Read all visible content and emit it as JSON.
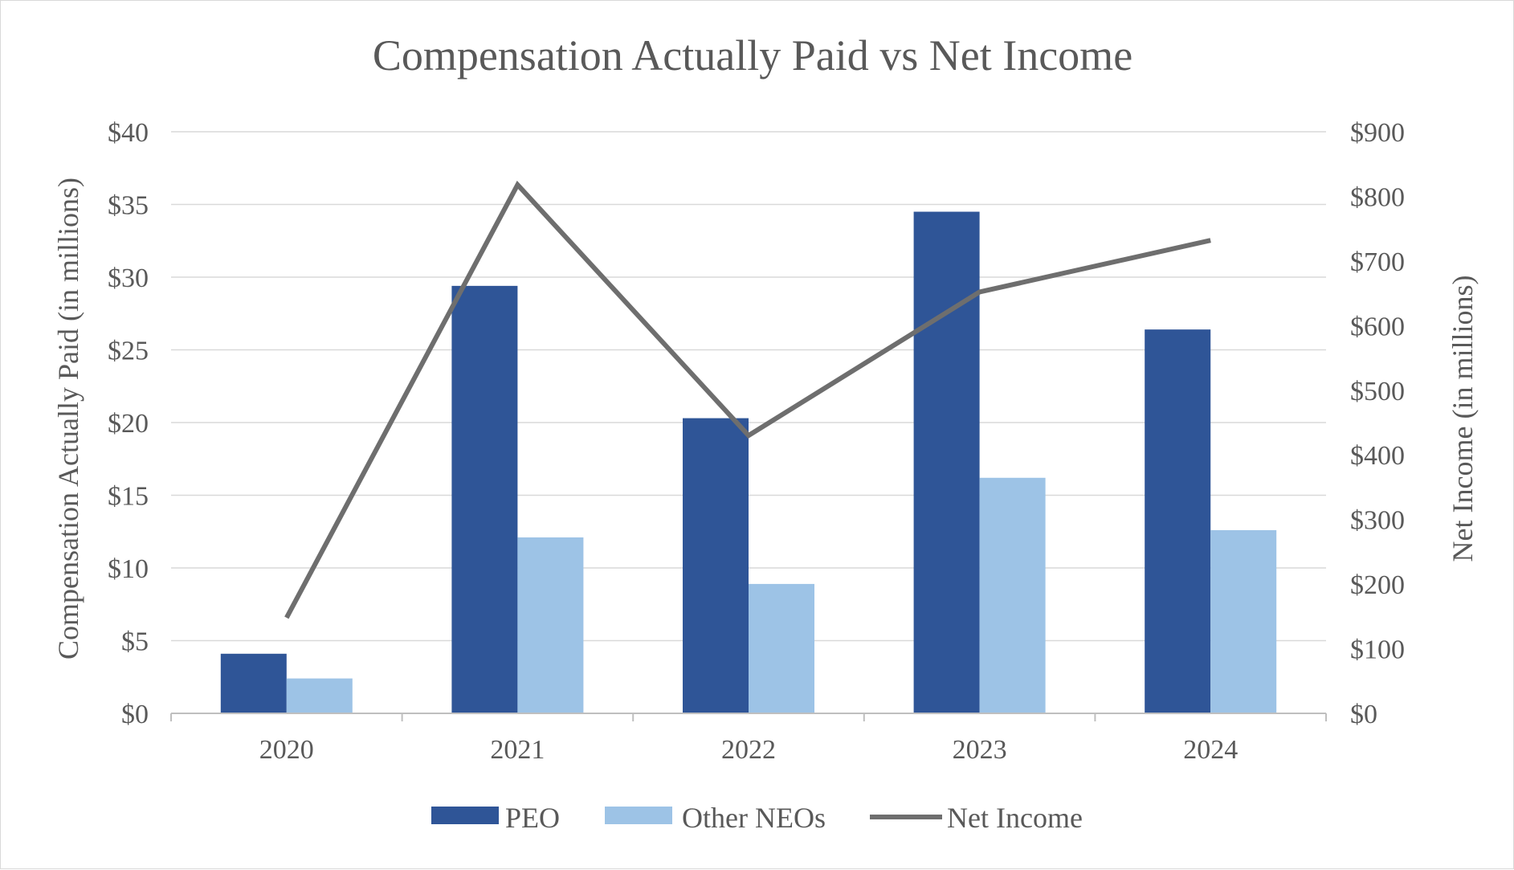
{
  "chart_data": {
    "type": "bar",
    "title": "Compensation Actually Paid vs Net Income",
    "categories": [
      "2020",
      "2021",
      "2022",
      "2023",
      "2024"
    ],
    "y_left": {
      "label": "Compensation Actually Paid (in millions)",
      "range": [
        0,
        40
      ],
      "ticks": [
        "$0",
        "$5",
        "$10",
        "$15",
        "$20",
        "$25",
        "$30",
        "$35",
        "$40"
      ]
    },
    "y_right": {
      "label": "Net Income (in millions)",
      "range": [
        0,
        900
      ],
      "ticks": [
        "$0",
        "$100",
        "$200",
        "$300",
        "$400",
        "$500",
        "$600",
        "$700",
        "$800",
        "$900"
      ]
    },
    "series": [
      {
        "name": "PEO",
        "type": "bar",
        "axis": "left",
        "color": "#2f5597",
        "values": [
          4.1,
          29.4,
          20.3,
          34.5,
          26.4
        ]
      },
      {
        "name": "Other NEOs",
        "type": "bar",
        "axis": "left",
        "color": "#9dc3e6",
        "values": [
          2.4,
          12.1,
          8.9,
          16.2,
          12.6
        ]
      },
      {
        "name": "Net Income",
        "type": "line",
        "axis": "right",
        "color": "#6e6e6e",
        "values": [
          148,
          818,
          430,
          652,
          732
        ]
      }
    ],
    "grid": true,
    "legend_position": "bottom"
  }
}
